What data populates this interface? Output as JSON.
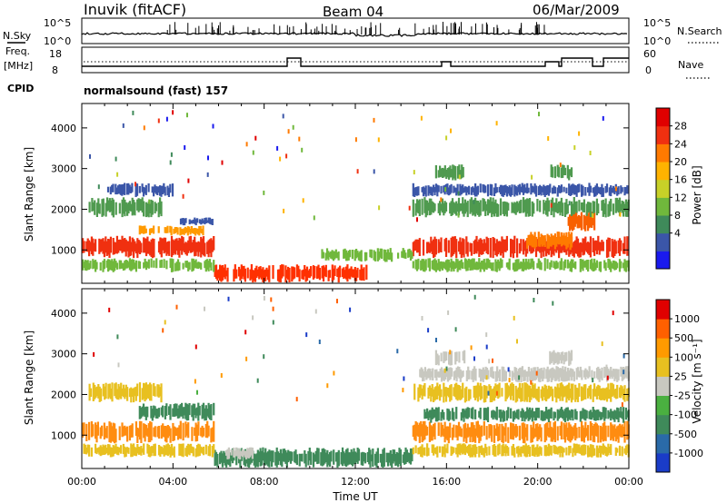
{
  "header": {
    "station": "Inuvik (fitACF)",
    "beam": "Beam 04",
    "date": "06/Mar/2009"
  },
  "top_panels": {
    "nsky": {
      "label": "N.Sky",
      "ticks": [
        "10^5",
        "10^0"
      ]
    },
    "nsearch": {
      "label": "N.Search",
      "ticks": [
        "10^5",
        "10^0"
      ]
    },
    "freq": {
      "label_line1": "Freq.",
      "label_line2": "[MHz]",
      "ticks": [
        "18",
        "8"
      ]
    },
    "nave": {
      "label": "Nave",
      "ticks": [
        "60",
        "0"
      ]
    },
    "cpid": {
      "label": "CPID",
      "value": "normalsound (fast) 157"
    }
  },
  "chart_data": [
    {
      "type": "heatmap",
      "name": "power",
      "title": "",
      "xlabel": "",
      "ylabel": "Slant Range [km]",
      "ylim": [
        180,
        4600
      ],
      "xlim_hours": [
        0,
        24
      ],
      "yticks": [
        "4000",
        "3000",
        "2000",
        "1000"
      ],
      "colorbar_label": "Power [dB]",
      "colorbar_ticks": [
        "28",
        "24",
        "20",
        "16",
        "12",
        "8",
        "4"
      ],
      "colors": [
        "#1a1aee",
        "#3b56a8",
        "#3f8a5a",
        "#70b83c",
        "#c8d128",
        "#ffb300",
        "#ff7a00",
        "#f03010",
        "#e00000"
      ],
      "bands": [
        {
          "range_km": [
            800,
            1350
          ],
          "hours": [
            [
              0,
              5.8
            ],
            [
              14.5,
              24
            ]
          ],
          "color": "#f03010"
        },
        {
          "range_km": [
            1350,
            1600
          ],
          "hours": [
            [
              2.5,
              5.5
            ]
          ],
          "color": "#ff9a00"
        },
        {
          "range_km": [
            1600,
            1800
          ],
          "hours": [
            [
              4.3,
              5.8
            ]
          ],
          "color": "#3b56a8"
        },
        {
          "range_km": [
            1000,
            1450
          ],
          "hours": [
            [
              19.5,
              21.5
            ]
          ],
          "color": "#ff7a00"
        },
        {
          "range_km": [
            1450,
            2000
          ],
          "hours": [
            [
              21.2,
              22.5
            ]
          ],
          "color": "#f86000"
        },
        {
          "range_km": [
            200,
            650
          ],
          "hours": [
            [
              5.8,
              12.5
            ]
          ],
          "color": "#ff3000"
        },
        {
          "range_km": [
            700,
            1050
          ],
          "hours": [
            [
              10.5,
              14.5
            ]
          ],
          "color": "#70b83c"
        },
        {
          "range_km": [
            1800,
            2300
          ],
          "hours": [
            [
              0.3,
              3.5
            ],
            [
              14.5,
              24
            ]
          ],
          "color": "#4f9a4f"
        },
        {
          "range_km": [
            2300,
            2650
          ],
          "hours": [
            [
              1.0,
              4.0
            ],
            [
              14.5,
              24
            ]
          ],
          "color": "#3b56a8"
        },
        {
          "range_km": [
            2700,
            3100
          ],
          "hours": [
            [
              15.5,
              16.8
            ],
            [
              20.5,
              21.5
            ]
          ],
          "color": "#4f9a4f"
        },
        {
          "range_km": [
            450,
            800
          ],
          "hours": [
            [
              0,
              5.8
            ],
            [
              14.5,
              24
            ]
          ],
          "color": "#70b83c"
        }
      ]
    },
    {
      "type": "heatmap",
      "name": "velocity",
      "title": "",
      "xlabel": "Time UT",
      "ylabel": "Slant Range [km]",
      "ylim": [
        180,
        4600
      ],
      "xlim_hours": [
        0,
        24
      ],
      "yticks": [
        "4000",
        "3000",
        "2000",
        "1000"
      ],
      "xticks": [
        "00:00",
        "04:00",
        "08:00",
        "12:00",
        "16:00",
        "20:00",
        "00:00"
      ],
      "colorbar_label": "Velocity [m s⁻¹]",
      "colorbar_ticks": [
        "1000",
        "500",
        "100",
        "25",
        "-25",
        "-100",
        "-500",
        "-1000"
      ],
      "colors": [
        "#1a3cc8",
        "#2a6aa8",
        "#3f8a5a",
        "#4ab040",
        "#c8c8c0",
        "#e8c020",
        "#ff9a00",
        "#ff6000",
        "#e00000"
      ],
      "bands": [
        {
          "range_km": [
            800,
            1350
          ],
          "hours": [
            [
              0,
              5.8
            ],
            [
              14.5,
              24
            ]
          ],
          "color": "#ff8c10"
        },
        {
          "range_km": [
            1350,
            1800
          ],
          "hours": [
            [
              2.5,
              5.8
            ]
          ],
          "color": "#3f8a5a"
        },
        {
          "range_km": [
            200,
            700
          ],
          "hours": [
            [
              5.8,
              14.5
            ]
          ],
          "color": "#3f8a5a"
        },
        {
          "range_km": [
            400,
            700
          ],
          "hours": [
            [
              6.3,
              7.5
            ]
          ],
          "color": "#c8c8c0"
        },
        {
          "range_km": [
            1800,
            2300
          ],
          "hours": [
            [
              0.3,
              3.5
            ],
            [
              14.5,
              24
            ]
          ],
          "color": "#e8c020"
        },
        {
          "range_km": [
            2300,
            2700
          ],
          "hours": [
            [
              14.8,
              24
            ]
          ],
          "color": "#c8c8c0"
        },
        {
          "range_km": [
            2700,
            3100
          ],
          "hours": [
            [
              15.5,
              16.8
            ],
            [
              20.5,
              21.5
            ]
          ],
          "color": "#c8c8c0"
        },
        {
          "range_km": [
            450,
            800
          ],
          "hours": [
            [
              0,
              5.8
            ],
            [
              14.5,
              24
            ]
          ],
          "color": "#e8c020"
        },
        {
          "range_km": [
            1300,
            1700
          ],
          "hours": [
            [
              15.0,
              24
            ]
          ],
          "color": "#3f8a5a"
        }
      ]
    }
  ]
}
